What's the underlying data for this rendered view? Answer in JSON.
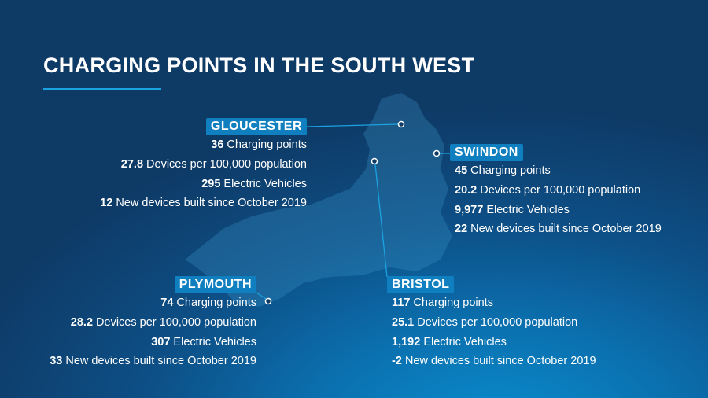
{
  "title": "CHARGING POINTS IN THE SOUTH WEST",
  "colors": {
    "accent": "#1aa3e0",
    "label_bg": "#0f7fc0"
  },
  "cities": [
    {
      "name": "GLOUCESTER",
      "stats": [
        {
          "value": "36",
          "label": "Charging points"
        },
        {
          "value": "27.8",
          "label": "Devices per 100,000 population"
        },
        {
          "value": "295",
          "label": "Electric Vehicles"
        },
        {
          "value": "12",
          "label": "New devices built since October 2019"
        }
      ]
    },
    {
      "name": "SWINDON",
      "stats": [
        {
          "value": "45",
          "label": "Charging points"
        },
        {
          "value": "20.2",
          "label": "Devices per 100,000 population"
        },
        {
          "value": "9,977",
          "label": "Electric Vehicles"
        },
        {
          "value": "22",
          "label": "New devices built since October 2019"
        }
      ]
    },
    {
      "name": "PLYMOUTH",
      "stats": [
        {
          "value": "74",
          "label": "Charging points"
        },
        {
          "value": "28.2",
          "label": "Devices per 100,000 population"
        },
        {
          "value": "307",
          "label": "Electric Vehicles"
        },
        {
          "value": "33",
          "label": "New devices built since October 2019"
        }
      ]
    },
    {
      "name": "BRISTOL",
      "stats": [
        {
          "value": "117",
          "label": "Charging points"
        },
        {
          "value": "25.1",
          "label": "Devices per 100,000 population"
        },
        {
          "value": "1,192",
          "label": "Electric Vehicles"
        },
        {
          "value": "-2",
          "label": "New devices built since October 2019"
        }
      ]
    }
  ]
}
